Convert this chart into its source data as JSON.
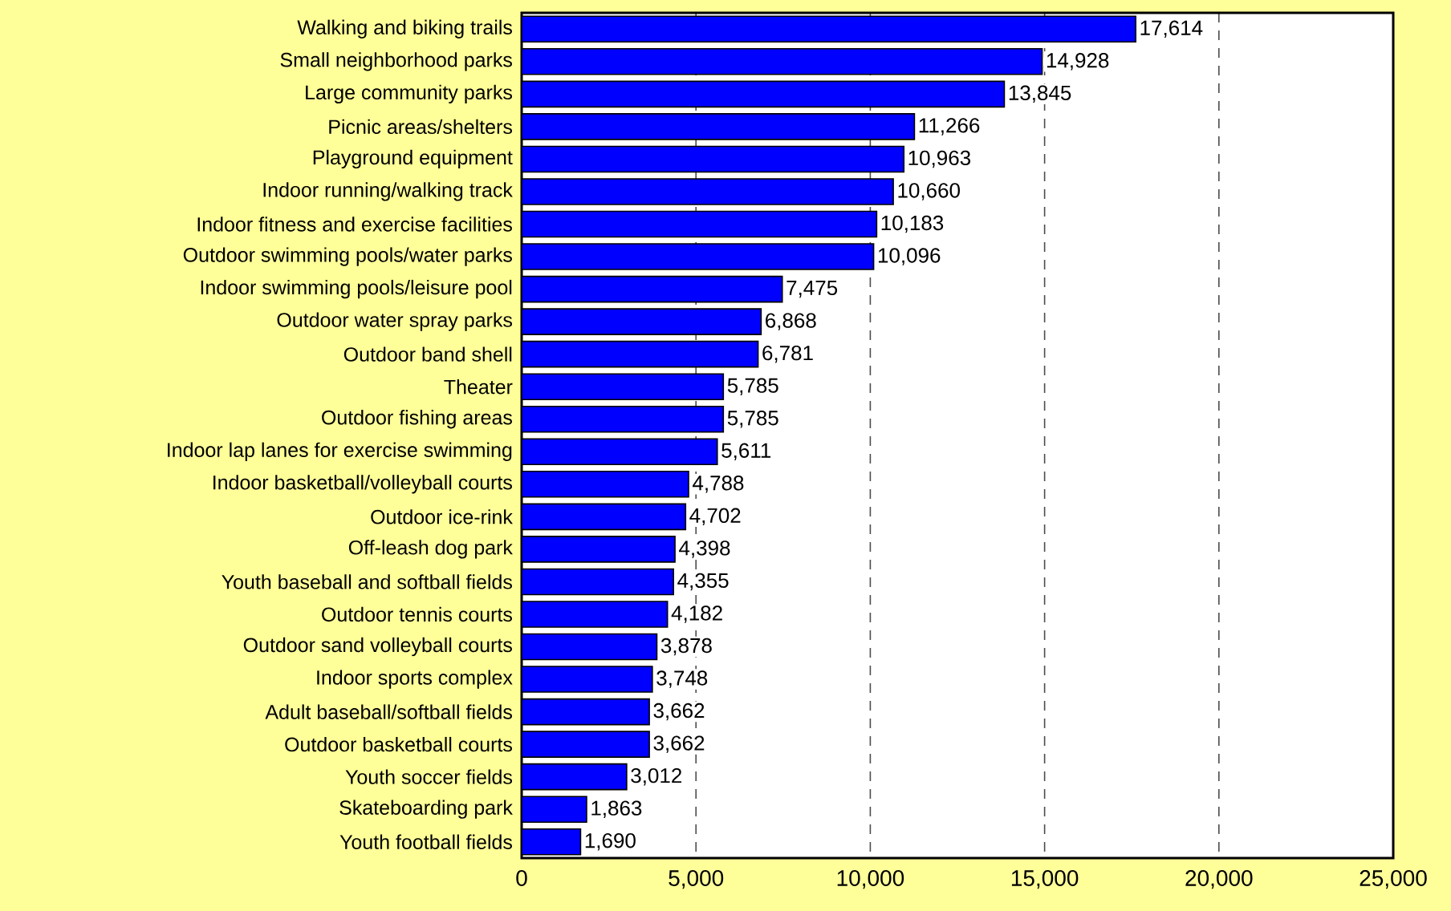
{
  "chart_data": {
    "type": "bar",
    "orientation": "horizontal",
    "categories": [
      "Walking and biking trails",
      "Small neighborhood parks",
      "Large community parks",
      "Picnic areas/shelters",
      "Playground equipment",
      "Indoor running/walking track",
      "Indoor fitness and exercise facilities",
      "Outdoor swimming pools/water parks",
      "Indoor swimming pools/leisure pool",
      "Outdoor water spray parks",
      "Outdoor band shell",
      "Theater",
      "Outdoor fishing areas",
      "Indoor lap lanes for exercise swimming",
      "Indoor basketball/volleyball courts",
      "Outdoor ice-rink",
      "Off-leash dog park",
      "Youth baseball and softball fields",
      "Outdoor tennis courts",
      "Outdoor sand volleyball courts",
      "Indoor sports complex",
      "Adult baseball/softball fields",
      "Outdoor basketball courts",
      "Youth soccer fields",
      "Skateboarding park",
      "Youth football fields"
    ],
    "values": [
      17614,
      14928,
      13845,
      11266,
      10963,
      10660,
      10183,
      10096,
      7475,
      6868,
      6781,
      5785,
      5785,
      5611,
      4788,
      4702,
      4398,
      4355,
      4182,
      3878,
      3748,
      3662,
      3662,
      3012,
      1863,
      1690
    ],
    "value_labels": [
      "17,614",
      "14,928",
      "13,845",
      "11,266",
      "10,963",
      "10,660",
      "10,183",
      "10,096",
      "7,475",
      "6,868",
      "6,781",
      "5,785",
      "5,785",
      "5,611",
      "4,788",
      "4,702",
      "4,398",
      "4,355",
      "4,182",
      "3,878",
      "3,748",
      "3,662",
      "3,662",
      "3,012",
      "1,863",
      "1,690"
    ],
    "color": "#0000ff",
    "xlim": [
      0,
      25000
    ],
    "xticks": [
      0,
      {
        "value": 5000,
        "label": "5,000"
      },
      {
        "value": 10000,
        "label": "10,000"
      },
      {
        "value": 15000,
        "label": "15,000"
      },
      {
        "value": 20000,
        "label": "20,000"
      },
      {
        "value": 25000,
        "label": "25,000"
      }
    ],
    "grid": "x"
  }
}
